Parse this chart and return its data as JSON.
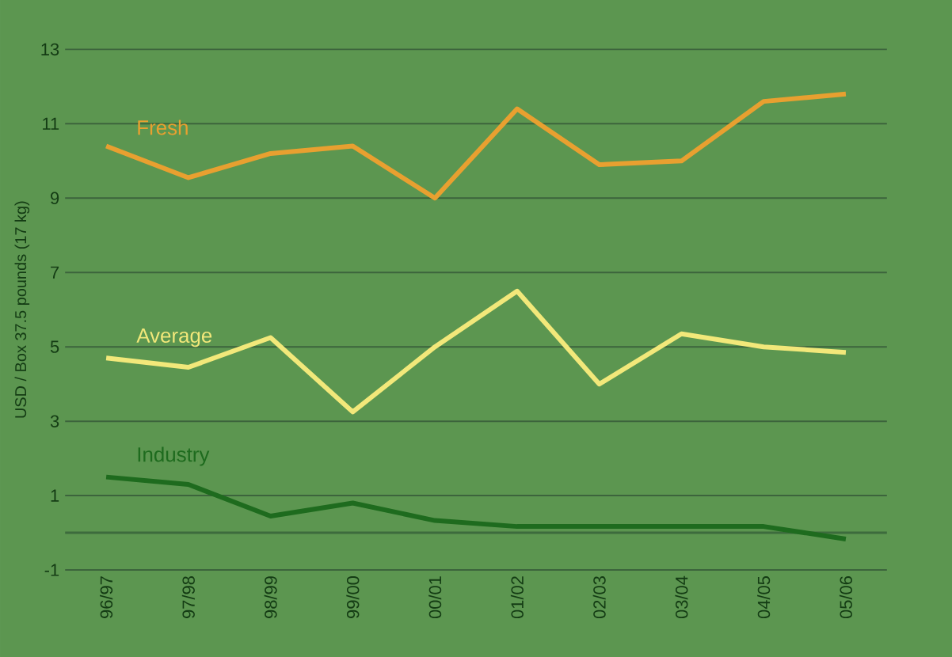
{
  "chart_data": {
    "type": "line",
    "ylabel": "USD / Box 37.5 pounds (17 kg)",
    "categories": [
      "96/97",
      "97/98",
      "98/99",
      "99/00",
      "00/01",
      "01/02",
      "02/03",
      "03/04",
      "04/05",
      "05/06"
    ],
    "series": [
      {
        "name": "Fresh",
        "color": "#e8a030",
        "values": [
          10.4,
          9.55,
          10.2,
          10.4,
          9.0,
          11.4,
          9.9,
          10.0,
          11.6,
          11.8
        ]
      },
      {
        "name": "Average",
        "color": "#f2e87a",
        "values": [
          4.7,
          4.45,
          5.25,
          3.25,
          5.0,
          6.5,
          4.0,
          5.35,
          5.0,
          4.85
        ]
      },
      {
        "name": "Industry",
        "color": "#1e6b1e",
        "values": [
          1.5,
          1.3,
          0.45,
          0.8,
          0.33,
          0.17,
          0.17,
          0.17,
          0.17,
          -0.17
        ]
      }
    ],
    "ylim": [
      -1,
      13
    ],
    "yticks": [
      -1,
      1,
      3,
      5,
      7,
      9,
      11,
      13
    ],
    "ref_lines": [
      {
        "axis": "y",
        "value": 0,
        "color": "#3d6b3d"
      }
    ],
    "grid": "y",
    "marker": "none",
    "line_style": "solid"
  }
}
